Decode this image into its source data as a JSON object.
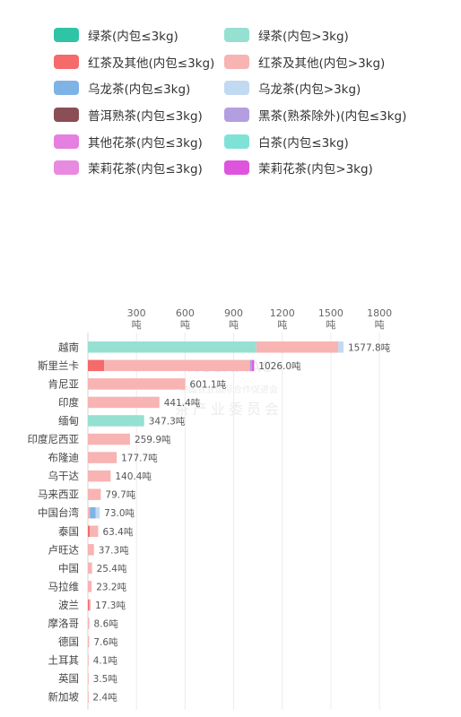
{
  "legend": [
    {
      "label": "绿茶(内包≤3kg)",
      "color": "#2ec4a5"
    },
    {
      "label": "绿茶(内包>3kg)",
      "color": "#95e0d1"
    },
    {
      "label": "红茶及其他(内包≤3kg)",
      "color": "#f56a6a"
    },
    {
      "label": "红茶及其他(内包>3kg)",
      "color": "#f8b3b3"
    },
    {
      "label": "乌龙茶(内包≤3kg)",
      "color": "#7fb2e5"
    },
    {
      "label": "乌龙茶(内包>3kg)",
      "color": "#c2d9f2"
    },
    {
      "label": "普洱熟茶(内包≤3kg)",
      "color": "#8b4e55"
    },
    {
      "label": "黑茶(熟茶除外)(内包≤3kg)",
      "color": "#b39ee0"
    },
    {
      "label": "其他花茶(内包≤3kg)",
      "color": "#e57fe0"
    },
    {
      "label": "白茶(内包≤3kg)",
      "color": "#7ee3d6"
    },
    {
      "label": "茉莉花茶(内包≤3kg)",
      "color": "#e88ae0"
    },
    {
      "label": "茉莉花茶(内包>3kg)",
      "color": "#dd55dd"
    }
  ],
  "watermark": {
    "line1": "TICCAPIAC",
    "line2": "中国农业国际合作促进会",
    "line3": "茶产业委员会"
  },
  "chart_data": {
    "type": "bar",
    "orientation": "horizontal",
    "stacked": true,
    "xlim": [
      0,
      1800
    ],
    "ticks": [
      300,
      600,
      900,
      1200,
      1500,
      1800
    ],
    "tick_unit": "吨",
    "grid": true,
    "legend_position": "top",
    "categories": [
      "越南",
      "斯里兰卡",
      "肯尼亚",
      "印度",
      "缅甸",
      "印度尼西亚",
      "布隆迪",
      "乌干达",
      "马来西亚",
      "中国台湾",
      "泰国",
      "卢旺达",
      "中国",
      "马拉维",
      "波兰",
      "摩洛哥",
      "德国",
      "土耳其",
      "英国",
      "新加坡"
    ],
    "total_labels": [
      "1577.8吨",
      "1026.0吨",
      "601.1吨",
      "441.4吨",
      "347.3吨",
      "259.9吨",
      "177.7吨",
      "140.4吨",
      "79.7吨",
      "73.0吨",
      "63.4吨",
      "37.3吨",
      "25.4吨",
      "23.2吨",
      "17.3吨",
      "8.6吨",
      "7.6吨",
      "4.1吨",
      "3.5吨",
      "2.4吨"
    ],
    "series": [
      {
        "name": "绿茶(内包≤3kg)",
        "color": "#2ec4a5",
        "values": [
          0,
          0,
          0,
          0,
          0,
          0,
          0,
          0,
          0,
          0,
          0,
          0,
          0,
          0,
          0,
          0,
          0,
          0,
          0,
          0
        ]
      },
      {
        "name": "绿茶(内包>3kg)",
        "color": "#95e0d1",
        "values": [
          1040,
          0,
          0,
          0,
          347.3,
          0,
          0,
          0,
          0,
          0,
          0,
          0,
          0,
          0,
          0,
          0,
          0,
          0,
          0,
          0
        ]
      },
      {
        "name": "红茶及其他(内包≤3kg)",
        "color": "#f56a6a",
        "values": [
          0,
          100,
          0,
          0,
          0,
          0,
          0,
          0,
          0,
          0,
          12,
          0,
          0,
          0,
          8,
          0,
          0,
          0,
          0,
          0
        ]
      },
      {
        "name": "红茶及其他(内包>3kg)",
        "color": "#f8b3b3",
        "values": [
          505,
          900,
          601.1,
          441.4,
          0,
          259.9,
          177.7,
          140.4,
          79.7,
          12,
          51.4,
          37.3,
          25.4,
          23.2,
          9.3,
          8.6,
          7.6,
          4.1,
          3.5,
          2.4
        ]
      },
      {
        "name": "乌龙茶(内包≤3kg)",
        "color": "#7fb2e5",
        "values": [
          0,
          0,
          0,
          0,
          0,
          0,
          0,
          0,
          0,
          36,
          0,
          0,
          0,
          0,
          0,
          0,
          0,
          0,
          0,
          0
        ]
      },
      {
        "name": "乌龙茶(内包>3kg)",
        "color": "#c2d9f2",
        "values": [
          32.8,
          0,
          0,
          0,
          0,
          0,
          0,
          0,
          0,
          25,
          0,
          0,
          0,
          0,
          0,
          0,
          0,
          0,
          0,
          0
        ]
      },
      {
        "name": "黑茶(熟茶除外)(内包≤3kg)",
        "color": "#b39ee0",
        "values": [
          0,
          14,
          0,
          0,
          0,
          0,
          0,
          0,
          0,
          0,
          0,
          0,
          0,
          0,
          0,
          0,
          0,
          0,
          0,
          0
        ]
      },
      {
        "name": "茉莉花茶(内包>3kg)",
        "color": "#dd55dd",
        "values": [
          0,
          12,
          0,
          0,
          0,
          0,
          0,
          0,
          0,
          0,
          0,
          0,
          0,
          0,
          0,
          0,
          0,
          0,
          0,
          0
        ]
      }
    ]
  }
}
